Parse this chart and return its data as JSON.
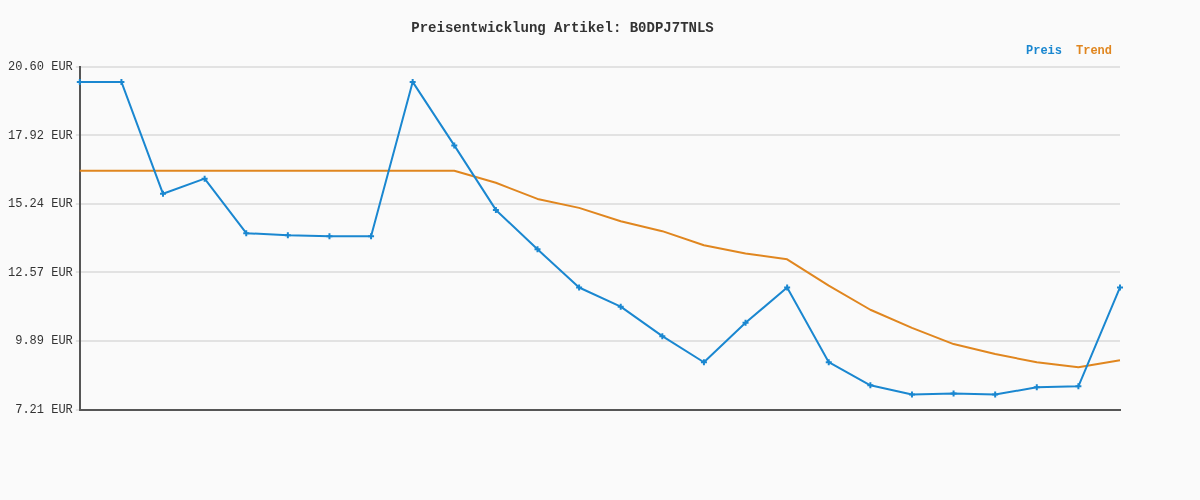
{
  "chart_data": {
    "type": "line",
    "title": "Preisentwicklung Artikel: B0DPJ7TNLS",
    "categories": [
      null,
      null,
      null,
      null,
      null,
      null,
      null,
      null,
      null,
      null,
      null,
      null,
      null,
      null,
      null,
      null,
      null,
      null,
      null,
      null,
      null,
      null,
      null,
      null,
      null,
      null
    ],
    "series": [
      {
        "name": "Preis",
        "color": "#1a87d0",
        "marker": "cross",
        "values": [
          20.01,
          20.01,
          15.64,
          16.23,
          14.1,
          14.02,
          13.98,
          13.98,
          20.01,
          17.53,
          15.01,
          13.47,
          11.98,
          11.23,
          10.08,
          9.06,
          10.6,
          11.98,
          9.06,
          8.16,
          7.8,
          7.84,
          7.8,
          8.08,
          8.12,
          11.98
        ]
      },
      {
        "name": "Trend",
        "color": "#e0861f",
        "marker": "none",
        "values": [
          16.54,
          16.54,
          16.54,
          16.54,
          16.54,
          16.54,
          16.54,
          16.54,
          16.54,
          16.54,
          16.07,
          15.44,
          15.09,
          14.57,
          14.18,
          13.63,
          13.31,
          13.08,
          12.05,
          11.11,
          10.4,
          9.77,
          9.38,
          9.06,
          8.86,
          9.14
        ]
      }
    ],
    "ylim": [
      7.21,
      20.6
    ],
    "yticks": [
      {
        "value": 7.21,
        "label": "7.21 EUR"
      },
      {
        "value": 9.89,
        "label": "9.89 EUR"
      },
      {
        "value": 12.57,
        "label": "12.57 EUR"
      },
      {
        "value": 15.24,
        "label": "15.24 EUR"
      },
      {
        "value": 17.92,
        "label": "17.92 EUR"
      },
      {
        "value": 20.6,
        "label": "20.60 EUR"
      }
    ],
    "grid": "y",
    "legend": "top right",
    "line_style": "solid"
  }
}
